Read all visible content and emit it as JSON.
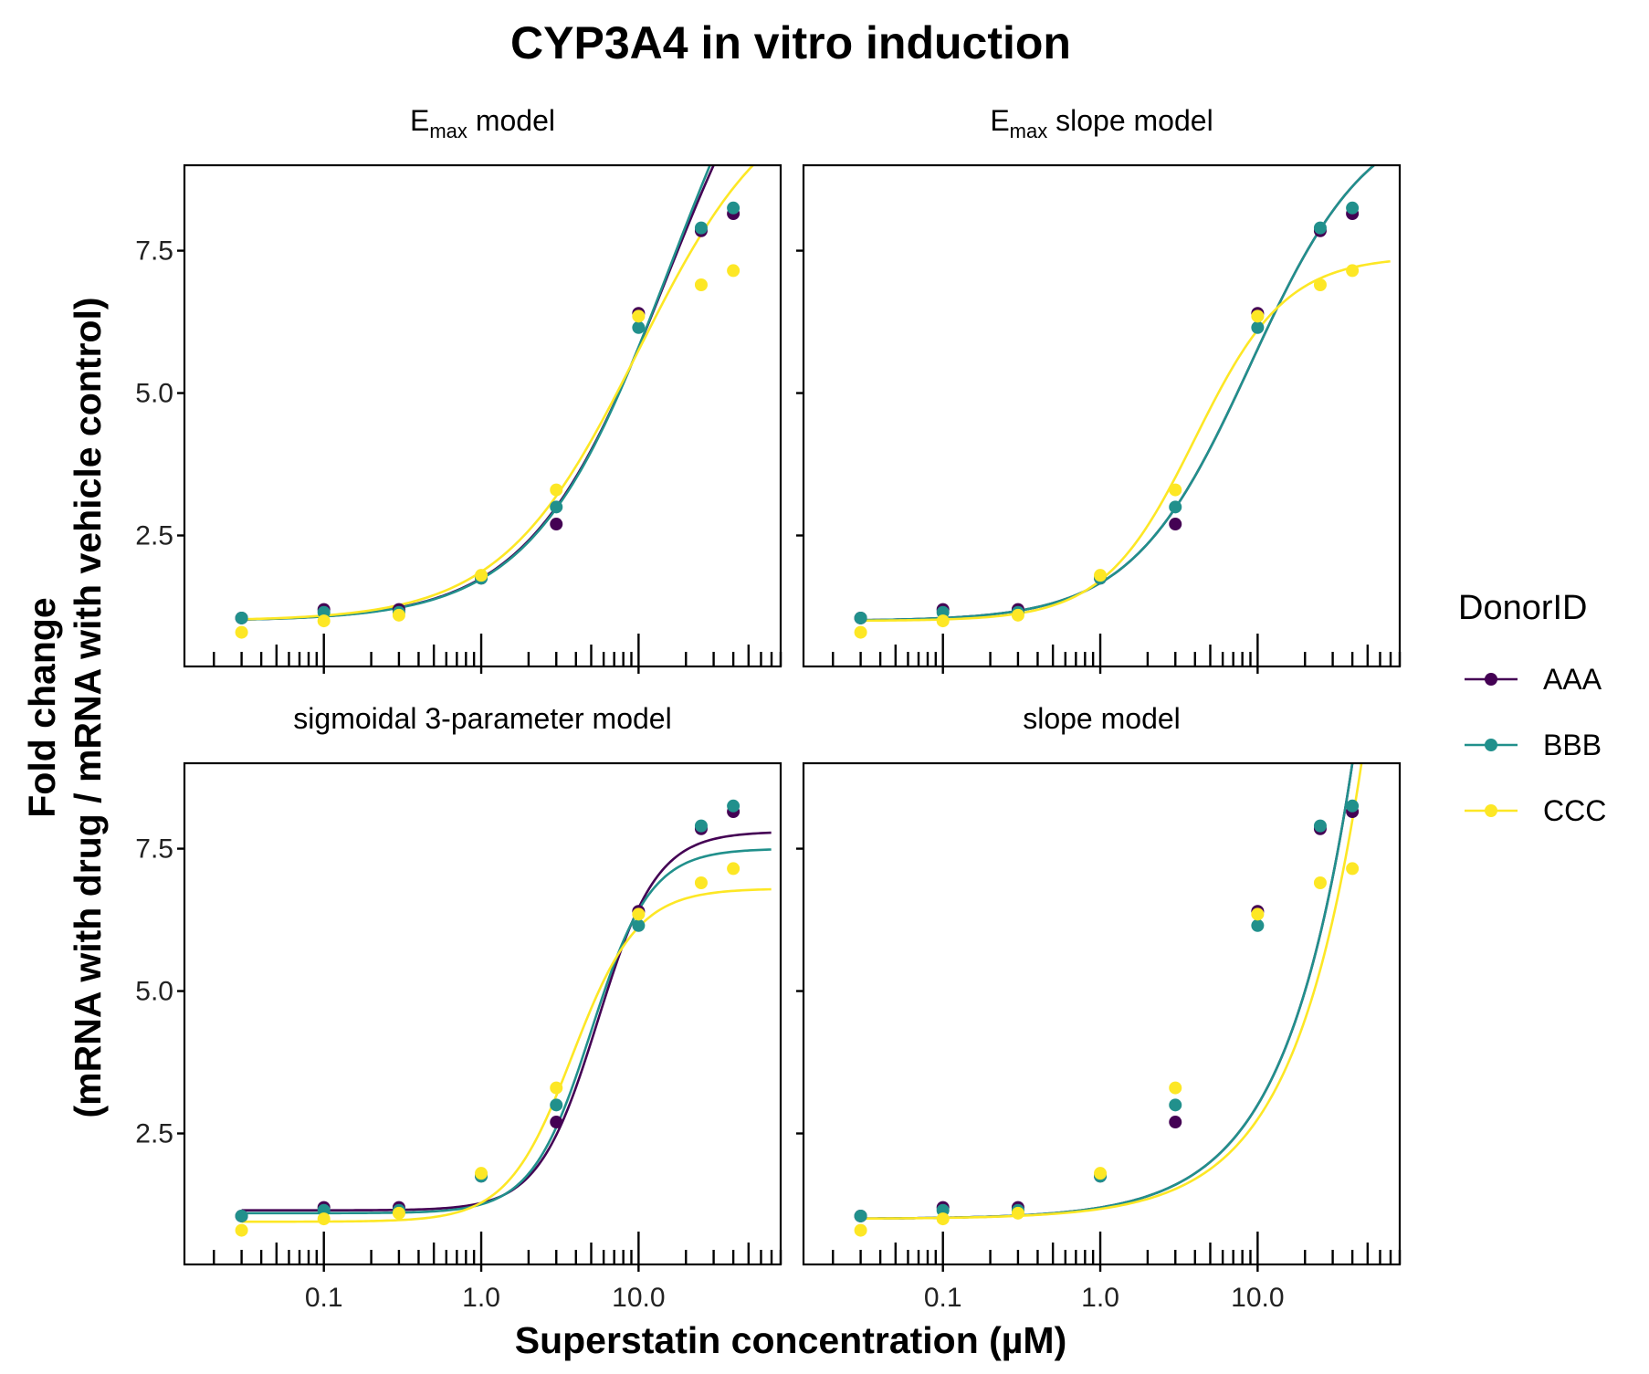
{
  "chart_data": {
    "type": "scatter",
    "title": "CYP3A4 in vitro induction",
    "xlabel": "Superstatin concentration (µM)",
    "ylabel_line1": "Fold change",
    "ylabel_line2": "(mRNA with drug / mRNA with vehicle control)",
    "x_scale": "log10",
    "xlim": [
      0.013,
      80
    ],
    "ylim": [
      0.2,
      9.0
    ],
    "x_ticks": [
      {
        "value": 0.1,
        "label": "0.1"
      },
      {
        "value": 1,
        "label": "1.0"
      },
      {
        "value": 10,
        "label": "10.0"
      }
    ],
    "y_ticks": [
      {
        "value": 2.5,
        "label": "2.5"
      },
      {
        "value": 5.0,
        "label": "5.0"
      },
      {
        "value": 7.5,
        "label": "7.5"
      }
    ],
    "grid": false,
    "legend": {
      "title": "DonorID",
      "position": "right",
      "entries": [
        {
          "label": "AAA",
          "color": "#440154"
        },
        {
          "label": "BBB",
          "color": "#21908C"
        },
        {
          "label": "CCC",
          "color": "#FDE725"
        }
      ]
    },
    "concentrations": [
      0.03,
      0.1,
      0.3,
      1,
      3,
      10,
      25,
      40
    ],
    "observations": {
      "AAA": [
        1.05,
        1.2,
        1.2,
        1.75,
        2.7,
        6.4,
        7.85,
        8.15
      ],
      "BBB": [
        1.05,
        1.15,
        1.15,
        1.75,
        3.0,
        6.15,
        7.9,
        8.25
      ],
      "CCC": [
        0.8,
        1.0,
        1.1,
        1.8,
        3.3,
        6.35,
        6.9,
        7.15
      ]
    },
    "panels": [
      {
        "title_main": "E",
        "title_sub": "max",
        "title_rest": " model",
        "curves": [
          {
            "series": "AAA",
            "model": "emax",
            "e0": 1.0,
            "emax": 12.0,
            "ec50": 15.0
          },
          {
            "series": "BBB",
            "model": "emax",
            "e0": 1.0,
            "emax": 12.5,
            "ec50": 16.0
          },
          {
            "series": "CCC",
            "model": "emax",
            "e0": 1.0,
            "emax": 9.5,
            "ec50": 10.0
          }
        ]
      },
      {
        "title_main": "E",
        "title_sub": "max",
        "title_rest": " slope model",
        "curves": [
          {
            "series": "AAA",
            "model": "hill",
            "e0": 1.0,
            "emax": 9.0,
            "ec50": 9.0,
            "n": 1.15
          },
          {
            "series": "BBB",
            "model": "hill",
            "e0": 1.0,
            "emax": 9.0,
            "ec50": 9.0,
            "n": 1.15
          },
          {
            "series": "CCC",
            "model": "hill",
            "e0": 1.0,
            "emax": 6.4,
            "ec50": 4.0,
            "n": 1.5
          }
        ]
      },
      {
        "title_main": "sigmoidal 3-parameter model",
        "title_sub": "",
        "title_rest": "",
        "curves": [
          {
            "series": "AAA",
            "model": "sigmoid",
            "lower": 1.15,
            "top": 7.8,
            "ec50": 5.5,
            "n": 2.3
          },
          {
            "series": "BBB",
            "model": "sigmoid",
            "lower": 1.1,
            "top": 7.5,
            "ec50": 5.0,
            "n": 2.3
          },
          {
            "series": "CCC",
            "model": "sigmoid",
            "lower": 0.95,
            "top": 6.8,
            "ec50": 3.8,
            "n": 2.1
          }
        ]
      },
      {
        "title_main": "slope model",
        "title_sub": "",
        "title_rest": "",
        "curves": [
          {
            "series": "AAA",
            "model": "linear",
            "e0": 1.0,
            "slope": 0.2
          },
          {
            "series": "BBB",
            "model": "linear",
            "e0": 1.0,
            "slope": 0.2
          },
          {
            "series": "CCC",
            "model": "linear",
            "e0": 1.0,
            "slope": 0.175
          }
        ]
      }
    ]
  }
}
